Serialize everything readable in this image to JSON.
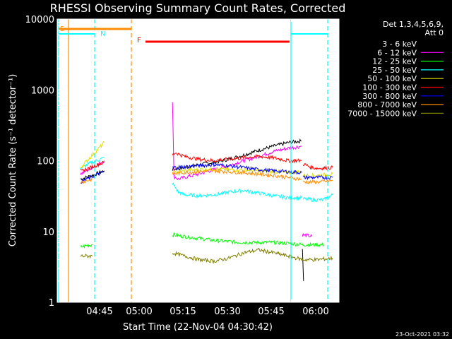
{
  "chart_data": {
    "type": "line",
    "title": "RHESSI Observing Summary Count Rates, Corrected",
    "xlabel": "Start Time (22-Nov-04 04:30:42)",
    "ylabel": "Corrected Count Rate (s⁻¹ detector⁻¹)",
    "y_scale": "log",
    "ylim": [
      1,
      10000
    ],
    "x_ticks": [
      "04:45",
      "05:00",
      "05:15",
      "05:30",
      "05:45",
      "06:00"
    ],
    "y_ticks": [
      "1",
      "10",
      "100",
      "1000",
      "10000"
    ],
    "legend": {
      "placement": "right",
      "header": [
        "Det 1,3,4,5,6,9,",
        "Att 0"
      ],
      "entries": [
        {
          "label": "3 - 6 keV",
          "color": "#000000"
        },
        {
          "label": "6 - 12 keV",
          "color": "#ff00ff"
        },
        {
          "label": "12 - 25 keV",
          "color": "#00ff00"
        },
        {
          "label": "25 - 50 keV",
          "color": "#00ffff"
        },
        {
          "label": "50 - 100 keV",
          "color": "#e0e000"
        },
        {
          "label": "100 - 300 keV",
          "color": "#ff0000"
        },
        {
          "label": "300 - 800 keV",
          "color": "#0000ff"
        },
        {
          "label": "800 - 7000 keV",
          "color": "#ff8c00"
        },
        {
          "label": "7000 - 15000 keV",
          "color": "#808000"
        }
      ]
    },
    "flags": [
      {
        "label": "S",
        "color": "#ff8c00"
      },
      {
        "label": "N",
        "color": "#00ffff"
      },
      {
        "label": "F",
        "color": "#ff0000"
      }
    ],
    "series": [
      {
        "color": "#000000",
        "segments": [
          {
            "x": [
              0,
              4,
              8
            ],
            "y": [
              55,
              62,
              72
            ]
          },
          {
            "x": [
              31,
              35,
              40,
              45,
              50,
              55,
              60,
              65,
              70,
              74.5
            ],
            "y": [
              75,
              80,
              88,
              95,
              105,
              120,
              140,
              160,
              180,
              190
            ]
          },
          {
            "x": [
              74.8,
              75.2
            ],
            "y": [
              6,
              2
            ]
          }
        ]
      },
      {
        "color": "#ff00ff",
        "segments": [
          {
            "x": [
              0,
              4,
              8
            ],
            "y": [
              65,
              80,
              100
            ]
          },
          {
            "x": [
              31,
              31.5,
              33,
              35,
              40,
              45,
              50,
              55,
              60,
              65,
              70,
              74.5
            ],
            "y": [
              700,
              60,
              55,
              58,
              65,
              75,
              85,
              100,
              115,
              135,
              150,
              160
            ]
          },
          {
            "x": [
              74.8,
              78
            ],
            "y": [
              9,
              8.5
            ]
          }
        ]
      },
      {
        "color": "#00ff00",
        "segments": [
          {
            "x": [
              0,
              2,
              4
            ],
            "y": [
              6,
              6.3,
              6.5
            ]
          },
          {
            "x": [
              31,
              35,
              40,
              45,
              50,
              55,
              60,
              65,
              70,
              75,
              80,
              82
            ],
            "y": [
              9,
              8.5,
              8,
              7.5,
              7.2,
              7,
              7,
              7,
              6.8,
              6.5,
              6.5,
              6.5
            ]
          }
        ]
      },
      {
        "color": "#00ffff",
        "segments": [
          {
            "x": [
              0,
              4,
              8
            ],
            "y": [
              78,
              95,
              110
            ]
          },
          {
            "x": [
              31,
              33,
              35,
              40,
              45,
              50,
              55,
              60,
              65,
              70,
              74.5
            ],
            "y": [
              48,
              36,
              33,
              32,
              33,
              36,
              38,
              35,
              32,
              30,
              30
            ]
          },
          {
            "x": [
              75,
              78,
              82,
              85
            ],
            "y": [
              29,
              28,
              28,
              33
            ]
          }
        ]
      },
      {
        "color": "#e0e000",
        "segments": [
          {
            "x": [
              0,
              4,
              8
            ],
            "y": [
              80,
              120,
              180
            ]
          },
          {
            "x": [
              31,
              35,
              40,
              45,
              50,
              55,
              60,
              65,
              70,
              74.5
            ],
            "y": [
              68,
              72,
              75,
              76,
              75,
              74,
              72,
              70,
              68,
              70
            ]
          },
          {
            "x": [
              75,
              80,
              85
            ],
            "y": [
              62,
              62,
              65
            ]
          }
        ]
      },
      {
        "color": "#ff0000",
        "segments": [
          {
            "x": [
              0,
              4,
              8
            ],
            "y": [
              70,
              82,
              95
            ]
          },
          {
            "x": [
              31,
              32,
              35,
              40,
              45,
              50,
              55,
              60,
              65,
              70,
              74.5
            ],
            "y": [
              120,
              130,
              115,
              105,
              100,
              105,
              110,
              115,
              110,
              100,
              100
            ]
          },
          {
            "x": [
              75,
              78,
              80,
              85
            ],
            "y": [
              90,
              80,
              78,
              80
            ]
          }
        ]
      },
      {
        "color": "#0000ff",
        "segments": [
          {
            "x": [
              0,
              4,
              8
            ],
            "y": [
              50,
              60,
              70
            ]
          },
          {
            "x": [
              31,
              35,
              40,
              45,
              50,
              55,
              60,
              65,
              70,
              74.5
            ],
            "y": [
              80,
              82,
              85,
              88,
              85,
              80,
              75,
              72,
              70,
              68
            ]
          },
          {
            "x": [
              75,
              80,
              85
            ],
            "y": [
              58,
              58,
              58
            ]
          }
        ]
      },
      {
        "color": "#ff8c00",
        "segments": [
          {
            "x": [
              0,
              2,
              4
            ],
            "y": [
              50,
              52,
              55
            ]
          },
          {
            "x": [
              31,
              35,
              40,
              45,
              50,
              55,
              60,
              65,
              70,
              74.5
            ],
            "y": [
              65,
              68,
              70,
              72,
              70,
              68,
              65,
              62,
              58,
              55
            ]
          },
          {
            "x": [
              75,
              80,
              85
            ],
            "y": [
              50,
              50,
              52
            ]
          }
        ]
      },
      {
        "color": "#808000",
        "segments": [
          {
            "x": [
              0,
              2,
              4
            ],
            "y": [
              4.5,
              4.5,
              4.5
            ]
          },
          {
            "x": [
              31,
              35,
              40,
              45,
              50,
              55,
              60,
              65,
              70,
              75,
              80,
              85
            ],
            "y": [
              5,
              4.5,
              4,
              3.8,
              4.2,
              5,
              5.5,
              5,
              4.5,
              4,
              4,
              4.2
            ]
          }
        ]
      }
    ]
  },
  "timestamp": "23-Oct-2021 03:32"
}
